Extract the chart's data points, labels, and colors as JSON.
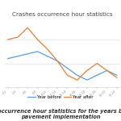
{
  "title": "Crashes occurrence hour statistics",
  "x_labels": [
    "0-2",
    "2-4",
    "4-6",
    "6-8",
    "8-10",
    "10-12",
    "12-14",
    "14-16",
    "16-18",
    "18-20",
    "20-22",
    "22-24"
  ],
  "year_before": [
    22,
    23,
    24,
    25,
    23,
    21,
    18,
    15,
    13,
    15,
    17,
    15
  ],
  "year_after": [
    30,
    31,
    35,
    30,
    26,
    21,
    15,
    13,
    17,
    20,
    17,
    14
  ],
  "color_before": "#5b9bd5",
  "color_after": "#ed7d31",
  "legend_before": "Year before",
  "legend_after": "Year after",
  "caption_line1": "s occurrence hour statistics for the years bef",
  "caption_line2": "pavement implementation",
  "background_color": "#ffffff",
  "grid_color": "#d9d9d9",
  "ylim": [
    10,
    38
  ],
  "title_fontsize": 5.2,
  "legend_fontsize": 3.8,
  "tick_fontsize": 2.5,
  "caption_fontsize": 4.8
}
